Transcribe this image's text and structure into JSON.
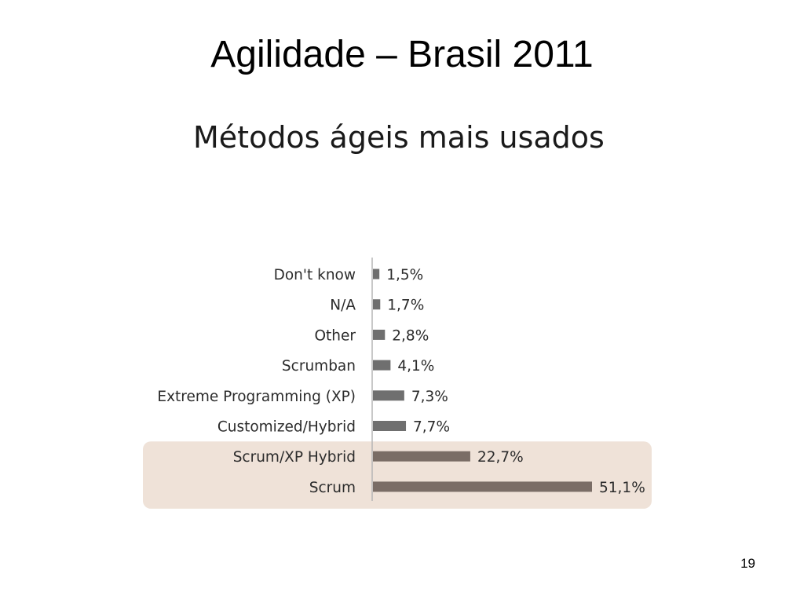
{
  "slide": {
    "title": "Agilidade – Brasil 2011",
    "page_number": "19"
  },
  "chart_data": {
    "type": "bar",
    "orientation": "horizontal",
    "title": "Métodos ágeis mais usados",
    "xlabel": "",
    "ylabel": "",
    "xlim": [
      0,
      51.1
    ],
    "grid": false,
    "categories": [
      "Don't know",
      "N/A",
      "Other",
      "Scrumban",
      "Extreme Programming (XP)",
      "Customized/Hybrid",
      "Scrum/XP Hybrid",
      "Scrum"
    ],
    "values": [
      1.5,
      1.7,
      2.8,
      4.1,
      7.3,
      7.7,
      22.7,
      51.1
    ],
    "data_labels": [
      "1,5%",
      "1,7%",
      "2,8%",
      "4,1%",
      "7,3%",
      "7,7%",
      "22,7%",
      "51,1%"
    ],
    "highlighted_categories": [
      "Scrum/XP Hybrid",
      "Scrum"
    ],
    "colors": {
      "bar": "#6f6f6f",
      "highlighted_bar": "#7a6d66",
      "highlight_background": "#efe2d8",
      "axis": "#b5b5b5",
      "label_text": "#2b2b2b"
    }
  }
}
